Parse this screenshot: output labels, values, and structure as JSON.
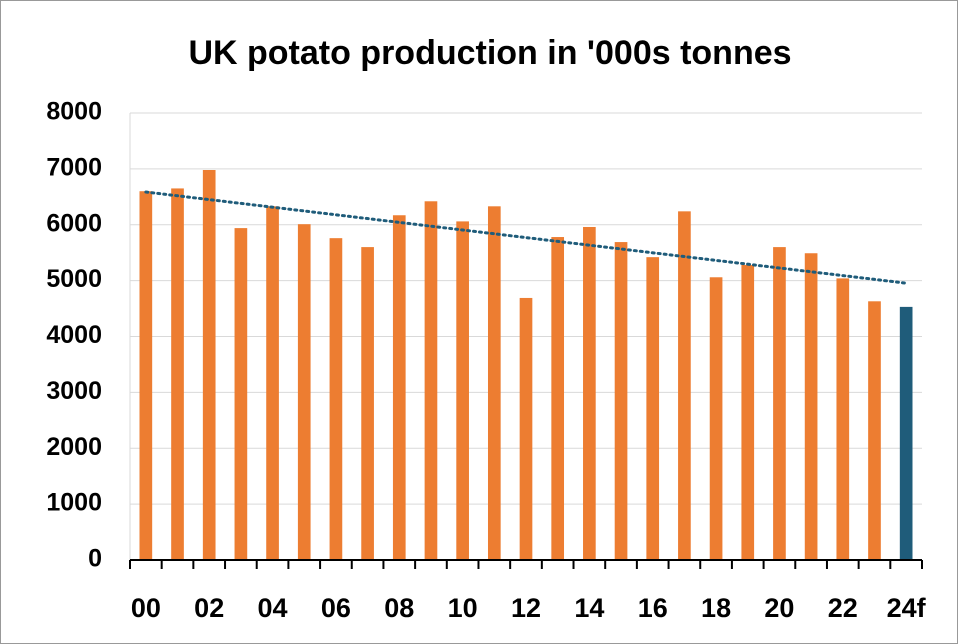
{
  "chart_data": {
    "type": "bar",
    "title": "UK potato production in '000s tonnes",
    "categories": [
      "00",
      null,
      "02",
      null,
      "04",
      null,
      "06",
      null,
      "08",
      null,
      "10",
      null,
      "12",
      null,
      "14",
      null,
      "16",
      null,
      "18",
      null,
      "20",
      null,
      "22",
      null,
      "24f"
    ],
    "values": [
      6600,
      6650,
      6980,
      5940,
      6330,
      6010,
      5760,
      5600,
      6170,
      6420,
      6060,
      6330,
      4690,
      5780,
      5960,
      5690,
      5420,
      6240,
      5060,
      5280,
      5600,
      5490,
      5040,
      4630,
      4530
    ],
    "colors": [
      "#ed7d31",
      "#ed7d31",
      "#ed7d31",
      "#ed7d31",
      "#ed7d31",
      "#ed7d31",
      "#ed7d31",
      "#ed7d31",
      "#ed7d31",
      "#ed7d31",
      "#ed7d31",
      "#ed7d31",
      "#ed7d31",
      "#ed7d31",
      "#ed7d31",
      "#ed7d31",
      "#ed7d31",
      "#ed7d31",
      "#ed7d31",
      "#ed7d31",
      "#ed7d31",
      "#ed7d31",
      "#ed7d31",
      "#ed7d31",
      "#1f5c7a"
    ],
    "ylim": [
      0,
      8000
    ],
    "yticks": [
      0,
      1000,
      2000,
      3000,
      4000,
      5000,
      6000,
      7000,
      8000
    ],
    "grid": true,
    "trendline": true,
    "trendline_color": "#1f5c7a"
  }
}
